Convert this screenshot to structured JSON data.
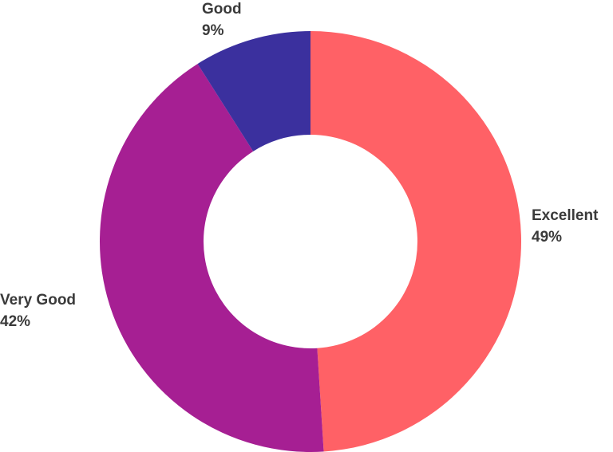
{
  "chart_data": {
    "type": "pie",
    "variant": "donut",
    "title": "",
    "slices": [
      {
        "label": "Excellent",
        "value": 49,
        "value_label": "49%",
        "color": "#FF6166"
      },
      {
        "label": "Very Good",
        "value": 42,
        "value_label": "42%",
        "color": "#A61F93"
      },
      {
        "label": "Good",
        "value": 9,
        "value_label": "9%",
        "color": "#3B309E"
      }
    ],
    "start": "top",
    "direction": "clockwise"
  }
}
